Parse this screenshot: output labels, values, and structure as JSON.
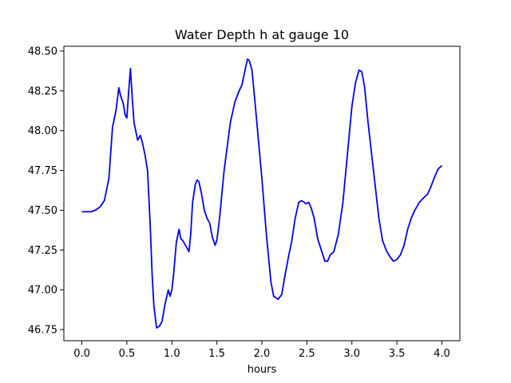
{
  "chart_data": {
    "type": "line",
    "title": "Water Depth h at gauge 10",
    "xlabel": "hours",
    "ylabel": "",
    "xlim": [
      -0.2,
      4.2
    ],
    "ylim": [
      46.68,
      48.53
    ],
    "x_ticks": [
      0.0,
      0.5,
      1.0,
      1.5,
      2.0,
      2.5,
      3.0,
      3.5,
      4.0
    ],
    "x_tick_labels": [
      "0.0",
      "0.5",
      "1.0",
      "1.5",
      "2.0",
      "2.5",
      "3.0",
      "3.5",
      "4.0"
    ],
    "y_ticks": [
      46.75,
      47.0,
      47.25,
      47.5,
      47.75,
      48.0,
      48.25,
      48.5
    ],
    "y_tick_labels": [
      "46.75",
      "47.00",
      "47.25",
      "47.50",
      "47.75",
      "48.00",
      "48.25",
      "48.50"
    ],
    "grid": false,
    "series": [
      {
        "color": "#0000ff",
        "points": [
          [
            0.0,
            47.49
          ],
          [
            0.1,
            47.49
          ],
          [
            0.15,
            47.5
          ],
          [
            0.2,
            47.52
          ],
          [
            0.25,
            47.56
          ],
          [
            0.3,
            47.7
          ],
          [
            0.34,
            48.02
          ],
          [
            0.38,
            48.13
          ],
          [
            0.41,
            48.27
          ],
          [
            0.43,
            48.22
          ],
          [
            0.46,
            48.17
          ],
          [
            0.48,
            48.1
          ],
          [
            0.5,
            48.08
          ],
          [
            0.52,
            48.25
          ],
          [
            0.54,
            48.39
          ],
          [
            0.56,
            48.2
          ],
          [
            0.58,
            48.05
          ],
          [
            0.62,
            47.94
          ],
          [
            0.65,
            47.97
          ],
          [
            0.67,
            47.93
          ],
          [
            0.7,
            47.85
          ],
          [
            0.73,
            47.75
          ],
          [
            0.76,
            47.4
          ],
          [
            0.78,
            47.1
          ],
          [
            0.8,
            46.9
          ],
          [
            0.83,
            46.76
          ],
          [
            0.86,
            46.77
          ],
          [
            0.89,
            46.8
          ],
          [
            0.92,
            46.9
          ],
          [
            0.96,
            47.0
          ],
          [
            0.98,
            46.96
          ],
          [
            1.0,
            47.0
          ],
          [
            1.02,
            47.1
          ],
          [
            1.05,
            47.3
          ],
          [
            1.08,
            47.38
          ],
          [
            1.1,
            47.32
          ],
          [
            1.12,
            47.31
          ],
          [
            1.15,
            47.28
          ],
          [
            1.19,
            47.24
          ],
          [
            1.21,
            47.35
          ],
          [
            1.23,
            47.55
          ],
          [
            1.26,
            47.66
          ],
          [
            1.28,
            47.69
          ],
          [
            1.3,
            47.68
          ],
          [
            1.33,
            47.6
          ],
          [
            1.36,
            47.5
          ],
          [
            1.39,
            47.45
          ],
          [
            1.42,
            47.42
          ],
          [
            1.45,
            47.33
          ],
          [
            1.48,
            47.28
          ],
          [
            1.5,
            47.31
          ],
          [
            1.53,
            47.45
          ],
          [
            1.58,
            47.75
          ],
          [
            1.65,
            48.05
          ],
          [
            1.7,
            48.18
          ],
          [
            1.74,
            48.24
          ],
          [
            1.78,
            48.29
          ],
          [
            1.82,
            48.4
          ],
          [
            1.84,
            48.45
          ],
          [
            1.86,
            48.44
          ],
          [
            1.89,
            48.38
          ],
          [
            1.92,
            48.2
          ],
          [
            1.96,
            47.95
          ],
          [
            2.0,
            47.7
          ],
          [
            2.05,
            47.35
          ],
          [
            2.1,
            47.05
          ],
          [
            2.13,
            46.96
          ],
          [
            2.18,
            46.94
          ],
          [
            2.22,
            46.97
          ],
          [
            2.26,
            47.1
          ],
          [
            2.3,
            47.22
          ],
          [
            2.33,
            47.3
          ],
          [
            2.37,
            47.45
          ],
          [
            2.41,
            47.55
          ],
          [
            2.44,
            47.56
          ],
          [
            2.47,
            47.55
          ],
          [
            2.49,
            47.54
          ],
          [
            2.52,
            47.55
          ],
          [
            2.55,
            47.51
          ],
          [
            2.58,
            47.45
          ],
          [
            2.62,
            47.32
          ],
          [
            2.66,
            47.25
          ],
          [
            2.7,
            47.18
          ],
          [
            2.73,
            47.18
          ],
          [
            2.76,
            47.22
          ],
          [
            2.8,
            47.24
          ],
          [
            2.85,
            47.35
          ],
          [
            2.9,
            47.55
          ],
          [
            2.95,
            47.85
          ],
          [
            3.0,
            48.15
          ],
          [
            3.04,
            48.3
          ],
          [
            3.08,
            48.38
          ],
          [
            3.11,
            48.37
          ],
          [
            3.14,
            48.28
          ],
          [
            3.18,
            48.05
          ],
          [
            3.22,
            47.85
          ],
          [
            3.26,
            47.65
          ],
          [
            3.3,
            47.45
          ],
          [
            3.34,
            47.31
          ],
          [
            3.38,
            47.25
          ],
          [
            3.42,
            47.21
          ],
          [
            3.46,
            47.18
          ],
          [
            3.5,
            47.19
          ],
          [
            3.54,
            47.22
          ],
          [
            3.58,
            47.28
          ],
          [
            3.62,
            47.38
          ],
          [
            3.66,
            47.45
          ],
          [
            3.7,
            47.5
          ],
          [
            3.75,
            47.55
          ],
          [
            3.8,
            47.58
          ],
          [
            3.84,
            47.6
          ],
          [
            3.88,
            47.65
          ],
          [
            3.92,
            47.71
          ],
          [
            3.96,
            47.76
          ],
          [
            4.0,
            47.78
          ]
        ]
      }
    ]
  }
}
